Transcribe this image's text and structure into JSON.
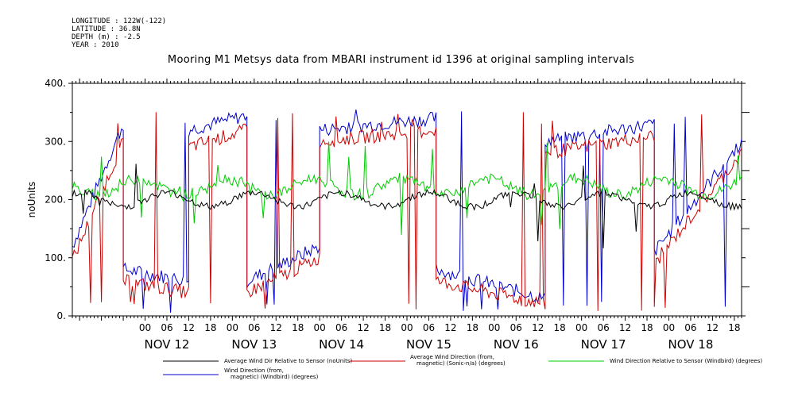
{
  "meta": {
    "longitude": "LONGITUDE : 122W(-122)",
    "latitude": "LATITUDE : 36.8N",
    "depth": "DEPTH (m) : -2.5",
    "year": "YEAR : 2010"
  },
  "chart_data": {
    "type": "line",
    "title": "Mooring M1 Metsys data from MBARI instrument id 1396 at original sampling intervals",
    "ylabel": "noUnits",
    "xlabel": "",
    "ylim": [
      0,
      400
    ],
    "yticks": [
      "0.",
      "100.",
      "200.",
      "300.",
      "400."
    ],
    "hour_labels": [
      "00",
      "06",
      "12",
      "18"
    ],
    "day_labels": [
      "NOV 12",
      "NOV 13",
      "NOV 14",
      "NOV 15",
      "NOV 16",
      "NOV 17",
      "NOV 18"
    ],
    "x_range_hours": [
      -20,
      164
    ],
    "series": [
      {
        "name": "Average Wind Dir Relative to Sensor (noUnits)",
        "color": "#000000",
        "level": 200,
        "amplitude": 12,
        "noise": 6
      },
      {
        "name": "Average Wind Direction (from, magnetic) (Sonic-n/a) (degrees)",
        "color": "#cc0000",
        "segments": [
          {
            "from": -20,
            "to": -6,
            "start": 95,
            "end": 300
          },
          {
            "from": -6,
            "to": 12,
            "start": 60,
            "end": 40
          },
          {
            "from": 12,
            "to": 28,
            "start": 290,
            "end": 320
          },
          {
            "from": 28,
            "to": 48,
            "start": 40,
            "end": 100
          },
          {
            "from": 48,
            "to": 80,
            "start": 300,
            "end": 320
          },
          {
            "from": 80,
            "to": 110,
            "start": 60,
            "end": 20
          },
          {
            "from": 110,
            "to": 140,
            "start": 280,
            "end": 310
          },
          {
            "from": 140,
            "to": 164,
            "start": 90,
            "end": 280
          }
        ]
      },
      {
        "name": "Wind Direction Relative to Sensor (Windbird) (degrees)",
        "color": "#00cc00",
        "level": 222,
        "amplitude": 14,
        "noise": 10
      },
      {
        "name": "Wind Direction (from, magnetic) (Windbird) (degrees)",
        "color": "#0000cc",
        "segments": [
          {
            "from": -20,
            "to": -6,
            "start": 120,
            "end": 330
          },
          {
            "from": -6,
            "to": 12,
            "start": 80,
            "end": 60
          },
          {
            "from": 12,
            "to": 28,
            "start": 320,
            "end": 345
          },
          {
            "from": 28,
            "to": 48,
            "start": 60,
            "end": 120
          },
          {
            "from": 48,
            "to": 80,
            "start": 320,
            "end": 340
          },
          {
            "from": 80,
            "to": 110,
            "start": 80,
            "end": 30
          },
          {
            "from": 110,
            "to": 140,
            "start": 300,
            "end": 330
          },
          {
            "from": 140,
            "to": 164,
            "start": 110,
            "end": 300
          }
        ]
      }
    ],
    "legend": [
      {
        "lines": [
          "Average Wind Dir Relative to Sensor (noUnits)"
        ],
        "color": "#000000"
      },
      {
        "lines": [
          "Average Wind Direction (from,",
          "magnetic) (Sonic-n/a) (degrees)"
        ],
        "color": "#cc0000"
      },
      {
        "lines": [
          "Wind Direction Relative to Sensor (Windbird) (degrees)"
        ],
        "color": "#00cc00"
      },
      {
        "lines": [
          "Wind Direction (from,",
          "magnetic) (Windbird) (degrees)"
        ],
        "color": "#0000cc"
      }
    ]
  }
}
